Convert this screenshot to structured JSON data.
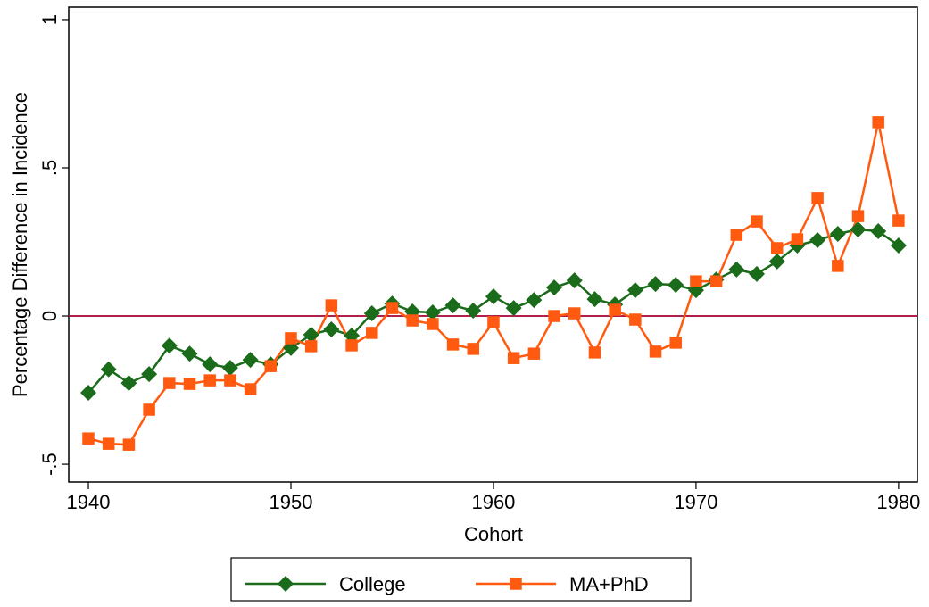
{
  "chart_data": {
    "type": "line",
    "x": [
      1940,
      1941,
      1942,
      1943,
      1944,
      1945,
      1946,
      1947,
      1948,
      1949,
      1950,
      1951,
      1952,
      1953,
      1954,
      1955,
      1956,
      1957,
      1958,
      1959,
      1960,
      1961,
      1962,
      1963,
      1964,
      1965,
      1966,
      1967,
      1968,
      1969,
      1970,
      1971,
      1972,
      1973,
      1974,
      1975,
      1976,
      1977,
      1978,
      1979,
      1980
    ],
    "series": [
      {
        "name": "College",
        "color": "#1a6b1a",
        "marker": "diamond",
        "values": [
          -0.259,
          -0.18,
          -0.226,
          -0.196,
          -0.1,
          -0.127,
          -0.163,
          -0.175,
          -0.148,
          -0.163,
          -0.108,
          -0.063,
          -0.045,
          -0.066,
          0.009,
          0.042,
          0.015,
          0.012,
          0.036,
          0.018,
          0.066,
          0.027,
          0.054,
          0.096,
          0.12,
          0.057,
          0.039,
          0.087,
          0.108,
          0.105,
          0.087,
          0.123,
          0.157,
          0.142,
          0.184,
          0.238,
          0.256,
          0.277,
          0.292,
          0.286,
          0.238
        ]
      },
      {
        "name": "MA+PhD",
        "color": "#ff5a0f",
        "marker": "square",
        "values": [
          -0.413,
          -0.431,
          -0.434,
          -0.316,
          -0.226,
          -0.229,
          -0.217,
          -0.217,
          -0.247,
          -0.169,
          -0.075,
          -0.102,
          0.036,
          -0.099,
          -0.057,
          0.027,
          -0.015,
          -0.027,
          -0.096,
          -0.111,
          -0.021,
          -0.142,
          -0.127,
          0.0,
          0.009,
          -0.123,
          0.021,
          -0.012,
          -0.12,
          -0.09,
          0.117,
          0.117,
          0.274,
          0.319,
          0.229,
          0.259,
          0.398,
          0.169,
          0.337,
          0.654,
          0.322
        ]
      }
    ],
    "x_label": "Cohort",
    "y_label": "Percentage Difference in Incidence",
    "xlim": [
      1939.03,
      1980.93
    ],
    "ylim": [
      -0.56,
      1.042
    ],
    "xticks": [
      1940,
      1950,
      1960,
      1970,
      1980
    ],
    "yticks": [
      {
        "value": -0.5,
        "label": "-.5"
      },
      0,
      {
        "value": 0.5,
        "label": ".5"
      },
      1
    ],
    "reference_line": {
      "value": 0,
      "color": "#b0204a"
    },
    "legend": "bottom"
  }
}
